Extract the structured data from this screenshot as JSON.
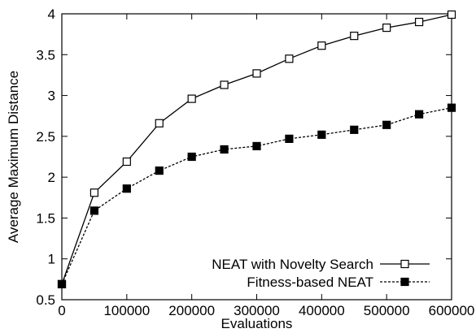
{
  "chart_data": {
    "type": "line",
    "title": "",
    "xlabel": "Evaluations",
    "ylabel": "Average Maximum Distance",
    "xlim": [
      0,
      600000
    ],
    "ylim": [
      0.5,
      4
    ],
    "xticks": [
      0,
      100000,
      200000,
      300000,
      400000,
      500000,
      600000
    ],
    "xtick_labels": [
      "0",
      "100000",
      "200000",
      "300000",
      "400000",
      "500000",
      "600000"
    ],
    "yticks": [
      0.5,
      1,
      1.5,
      2,
      2.5,
      3,
      3.5,
      4
    ],
    "ytick_labels": [
      "0.5",
      "1",
      "1.5",
      "2",
      "2.5",
      "3",
      "3.5",
      "4"
    ],
    "grid": false,
    "legend_position": "bottom-right",
    "x": [
      0,
      50000,
      100000,
      150000,
      200000,
      250000,
      300000,
      350000,
      400000,
      450000,
      500000,
      550000,
      600000
    ],
    "series": [
      {
        "name": "NEAT with Novelty Search",
        "color": "#000000",
        "line_style": "solid",
        "marker": "open-square",
        "values": [
          0.69,
          1.81,
          2.19,
          2.66,
          2.96,
          3.13,
          3.27,
          3.45,
          3.61,
          3.73,
          3.83,
          3.9,
          3.99
        ]
      },
      {
        "name": "Fitness-based NEAT",
        "color": "#000000",
        "line_style": "dashed",
        "marker": "filled-square",
        "values": [
          0.69,
          1.59,
          1.86,
          2.08,
          2.25,
          2.34,
          2.38,
          2.47,
          2.52,
          2.58,
          2.64,
          2.77,
          2.85
        ]
      }
    ]
  }
}
